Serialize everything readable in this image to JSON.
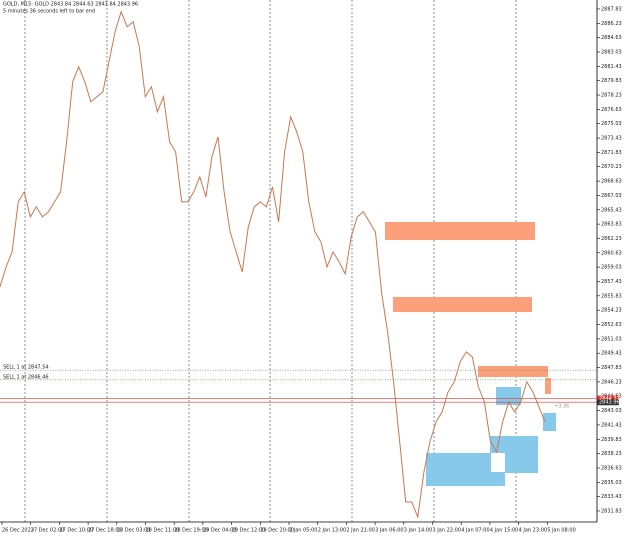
{
  "chart_data": {
    "type": "line",
    "title": "GOLD, M15:  GOLD  2843.84 2844.63 2843.84 2843.96",
    "subtitle": "5 minutes 36 seconds left to bar end",
    "annotation": "+3.36",
    "color": "#c8784f",
    "values": [
      2856.83,
      2859.06,
      2860.73,
      2866.31,
      2867.43,
      2864.64,
      2865.76,
      2864.64,
      2865.2,
      2866.31,
      2867.43,
      2873.01,
      2879.71,
      2881.38,
      2879.71,
      2877.47,
      2878.03,
      2878.59,
      2881.94,
      2885.29,
      2887.52,
      2885.84,
      2886.4,
      2883.61,
      2878.03,
      2879.15,
      2876.36,
      2878.03,
      2873.01,
      2871.89,
      2866.31,
      2866.31,
      2867.43,
      2869.1,
      2866.87,
      2871.34,
      2873.57,
      2867.43,
      2862.97,
      2860.73,
      2858.5,
      2863.52,
      2865.76,
      2866.31,
      2865.76,
      2867.99,
      2864.08,
      2871.89,
      2875.8,
      2874.13,
      2871.89,
      2866.31,
      2862.97,
      2861.85,
      2859.06,
      2860.73,
      2859.62,
      2858.28,
      2862.41,
      2864.64,
      2865.2,
      2864.08,
      2862.97,
      2856.27,
      2851.81,
      2846.23,
      2839.53,
      2832.83,
      2832.83,
      2831.16,
      2836.18,
      2839.53,
      2841.76,
      2842.88,
      2845.11,
      2846.23,
      2848.46,
      2849.57,
      2849.02,
      2845.67,
      2843.99,
      2839.53,
      2838.41,
      2841.76,
      2843.99,
      2842.88,
      2843.99,
      2846.23,
      2845.11,
      2843.44,
      2841.76
    ],
    "x_labels": [
      "26 Dec 2023",
      "27 Dec 02:00",
      "27 Dec 10:00",
      "27 Dec 18:00",
      "28 Dec 03:00",
      "28 Dec 11:00",
      "28 Dec 19:00",
      "29 Dec 04:00",
      "29 Dec 12:00",
      "29 Dec 20:00",
      "2 Jan 05:00",
      "2 Jan 13:00",
      "2 Jan 21:00",
      "3 Jan 06:00",
      "3 Jan 14:00",
      "3 Jan 22:00",
      "4 Jan 07:00",
      "4 Jan 15:00",
      "4 Jan 23:00",
      "5 Jan 08:00"
    ],
    "ylim": [
      2830.6,
      2888.83
    ],
    "yticks": [
      2831.83,
      2833.43,
      2835.03,
      2836.63,
      2838.23,
      2839.83,
      2841.43,
      2843.03,
      2844.63,
      2846.23,
      2847.83,
      2849.43,
      2851.03,
      2852.63,
      2854.23,
      2855.83,
      2857.43,
      2859.03,
      2860.63,
      2862.23,
      2863.83,
      2865.43,
      2867.03,
      2868.63,
      2870.23,
      2871.83,
      2873.43,
      2875.03,
      2876.63,
      2878.23,
      2879.83,
      2881.43,
      2883.03,
      2884.63,
      2886.23,
      2887.83
    ],
    "orders": [
      {
        "label": "SELL 1 at 2847.54",
        "value": 2847.54
      },
      {
        "label": "SELL 1 at 2846.46",
        "value": 2846.46
      }
    ],
    "price_lines": [
      2844.37,
      2843.96
    ]
  }
}
